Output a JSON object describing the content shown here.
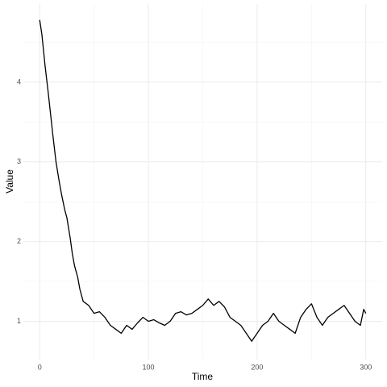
{
  "chart_data": {
    "type": "line",
    "x_label": "Time",
    "y_label": "Value",
    "x": [
      0,
      2,
      5,
      8,
      10,
      12,
      15,
      18,
      20,
      23,
      25,
      28,
      30,
      32,
      35,
      37,
      40,
      45,
      50,
      55,
      60,
      65,
      70,
      75,
      80,
      85,
      90,
      95,
      100,
      105,
      110,
      115,
      120,
      125,
      130,
      135,
      140,
      145,
      150,
      155,
      160,
      165,
      170,
      175,
      180,
      185,
      190,
      195,
      200,
      205,
      210,
      215,
      220,
      225,
      230,
      235,
      240,
      245,
      250,
      255,
      260,
      265,
      270,
      275,
      280,
      285,
      290,
      295,
      298,
      300
    ],
    "series": [
      {
        "name": "Value",
        "color": "#000000",
        "values": [
          4.78,
          4.6,
          4.2,
          3.85,
          3.6,
          3.35,
          3.0,
          2.75,
          2.6,
          2.4,
          2.3,
          2.05,
          1.85,
          1.7,
          1.55,
          1.4,
          1.25,
          1.2,
          1.1,
          1.12,
          1.05,
          0.95,
          0.9,
          0.85,
          0.95,
          0.9,
          0.98,
          1.05,
          1.0,
          1.02,
          0.98,
          0.95,
          1.0,
          1.1,
          1.12,
          1.08,
          1.1,
          1.15,
          1.2,
          1.28,
          1.2,
          1.25,
          1.18,
          1.05,
          1.0,
          0.95,
          0.85,
          0.75,
          0.85,
          0.95,
          1.0,
          1.1,
          1.0,
          0.95,
          0.9,
          0.85,
          1.05,
          1.15,
          1.22,
          1.05,
          0.95,
          1.05,
          1.1,
          1.15,
          1.2,
          1.1,
          1.0,
          0.95,
          1.15,
          1.1
        ]
      }
    ],
    "xlim": [
      -15,
      315
    ],
    "ylim": [
      0.52,
      4.98
    ],
    "xticks": [
      0,
      100,
      200,
      300
    ],
    "yticks": [
      1,
      2,
      3,
      4
    ],
    "xminor": [
      50,
      150,
      250
    ],
    "yminor": [
      1.5,
      2.5,
      3.5,
      4.5
    ],
    "grid": true
  }
}
